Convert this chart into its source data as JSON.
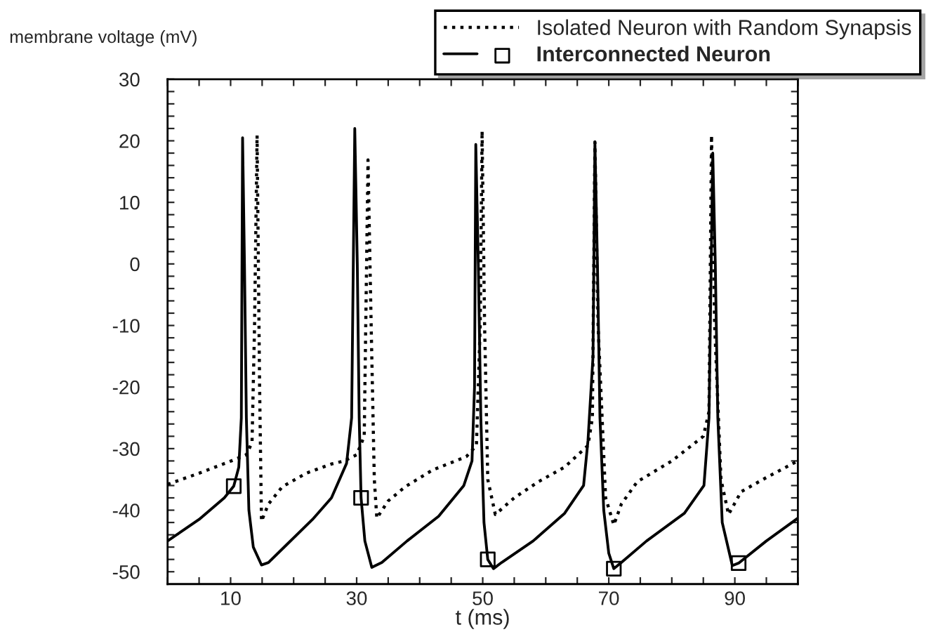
{
  "chart_data": {
    "type": "line",
    "xlabel": "t (ms)",
    "ylabel": "membrane voltage (mV)",
    "legend": "top right",
    "xlim": [
      0,
      100
    ],
    "ylim": [
      -52,
      30
    ],
    "xticks": [
      {
        "value": 0,
        "label": null
      },
      {
        "value": 5,
        "label": null
      },
      10,
      {
        "value": 15,
        "label": null
      },
      {
        "value": 20,
        "label": null
      },
      {
        "value": 25,
        "label": null
      },
      30,
      {
        "value": 35,
        "label": null
      },
      {
        "value": 40,
        "label": null
      },
      {
        "value": 45,
        "label": null
      },
      50,
      {
        "value": 55,
        "label": null
      },
      {
        "value": 60,
        "label": null
      },
      {
        "value": 65,
        "label": null
      },
      70,
      {
        "value": 75,
        "label": null
      },
      {
        "value": 80,
        "label": null
      },
      {
        "value": 85,
        "label": null
      },
      90,
      {
        "value": 95,
        "label": null
      },
      {
        "value": 100,
        "label": null
      }
    ],
    "yticks": [
      -50,
      {
        "value": -48,
        "label": null
      },
      {
        "value": -46,
        "label": null
      },
      {
        "value": -44,
        "label": null
      },
      {
        "value": -42,
        "label": null
      },
      -40,
      {
        "value": -38,
        "label": null
      },
      {
        "value": -36,
        "label": null
      },
      {
        "value": -34,
        "label": null
      },
      {
        "value": -32,
        "label": null
      },
      -30,
      {
        "value": -28,
        "label": null
      },
      {
        "value": -26,
        "label": null
      },
      {
        "value": -24,
        "label": null
      },
      {
        "value": -22,
        "label": null
      },
      -20,
      {
        "value": -18,
        "label": null
      },
      {
        "value": -16,
        "label": null
      },
      {
        "value": -14,
        "label": null
      },
      {
        "value": -12,
        "label": null
      },
      -10,
      {
        "value": -8,
        "label": null
      },
      {
        "value": -6,
        "label": null
      },
      {
        "value": -4,
        "label": null
      },
      {
        "value": -2,
        "label": null
      },
      0,
      {
        "value": 2,
        "label": null
      },
      {
        "value": 4,
        "label": null
      },
      {
        "value": 6,
        "label": null
      },
      {
        "value": 8,
        "label": null
      },
      10,
      {
        "value": 12,
        "label": null
      },
      {
        "value": 14,
        "label": null
      },
      {
        "value": 16,
        "label": null
      },
      {
        "value": 18,
        "label": null
      },
      20,
      {
        "value": 22,
        "label": null
      },
      {
        "value": 24,
        "label": null
      },
      {
        "value": 26,
        "label": null
      },
      {
        "value": 28,
        "label": null
      },
      30
    ],
    "series": [
      {
        "name": "Isolated Neuron with Random Synapsis",
        "color": "#000000",
        "line_style": "dotted",
        "marker": "none",
        "x": [
          0,
          5,
          10.1,
          12.5,
          13.4,
          13.8,
          14.2,
          14.6,
          14.9,
          16,
          18.2,
          22,
          26,
          28,
          30,
          31.2,
          31.8,
          32.3,
          32.8,
          33.2,
          35,
          37.7,
          42,
          47.4,
          49,
          49.6,
          49.9,
          50.3,
          50.8,
          52,
          55,
          58.8,
          63,
          66.7,
          67.4,
          67.8,
          68.3,
          69.5,
          70.8,
          72,
          74.5,
          80,
          85,
          85.9,
          86.3,
          86.8,
          87.8,
          89,
          91,
          95,
          100
        ],
        "values": [
          -35.8,
          -34,
          -32,
          -31,
          -29,
          -10,
          20.9,
          -20,
          -41.8,
          -39,
          -36.2,
          -34,
          -32.5,
          -32,
          -31,
          -28,
          16.9,
          -10,
          -35,
          -41.3,
          -38.5,
          -36.2,
          -33.5,
          -31.3,
          -29.5,
          -10,
          21.6,
          -10,
          -35,
          -40.7,
          -38,
          -35.4,
          -33,
          -29.5,
          -25,
          19.8,
          -10,
          -38,
          -42.4,
          -39,
          -35.4,
          -32,
          -28,
          -24,
          20.9,
          -10,
          -35,
          -40.7,
          -37,
          -34.7,
          -32
        ]
      },
      {
        "name": "Interconnected Neuron",
        "color": "#000000",
        "line_style": "solid",
        "marker": "none",
        "x": [
          0,
          5,
          9,
          10.5,
          11.3,
          11.7,
          11.9,
          12.2,
          12.5,
          12.9,
          13.6,
          14.9,
          16,
          19,
          23,
          26,
          28.4,
          29.2,
          29.7,
          30.1,
          30.4,
          30.7,
          31.3,
          32.4,
          34,
          38,
          43,
          47,
          48.3,
          48.7,
          48.9,
          49.3,
          49.7,
          50.2,
          50.8,
          51.7,
          53,
          58,
          63,
          66,
          66.7,
          67.5,
          67.8,
          68.2,
          68.6,
          69.2,
          70,
          70.8,
          72,
          76,
          82,
          85.1,
          85.9,
          86.5,
          86.9,
          87.3,
          88,
          89.6,
          90.6,
          95,
          100
        ],
        "values": [
          -45,
          -41.5,
          -38,
          -36.1,
          -33,
          -25,
          20.5,
          0,
          -25,
          -40,
          -46,
          -48.9,
          -48.5,
          -45.5,
          -41.5,
          -38,
          -32.4,
          -25,
          22,
          0,
          -25,
          -38,
          -45,
          -49.3,
          -48.5,
          -45,
          -41,
          -36,
          -32,
          -20,
          19.4,
          0,
          -25,
          -42,
          -48,
          -49.5,
          -48.5,
          -45,
          -40.5,
          -36,
          -28.7,
          -15,
          19.8,
          0,
          -25,
          -40,
          -47,
          -49.5,
          -48.5,
          -45,
          -40.5,
          -36,
          -25,
          18,
          0,
          -25,
          -42,
          -49,
          -48.6,
          -45,
          -41.3
        ]
      },
      {
        "type": "scatter",
        "color": "#000000",
        "marker": "square",
        "x": [
          10.5,
          30.7,
          50.8,
          70.8,
          90.6
        ],
        "values": [
          -36.1,
          -38,
          -48,
          -49.5,
          -48.6
        ]
      }
    ]
  }
}
